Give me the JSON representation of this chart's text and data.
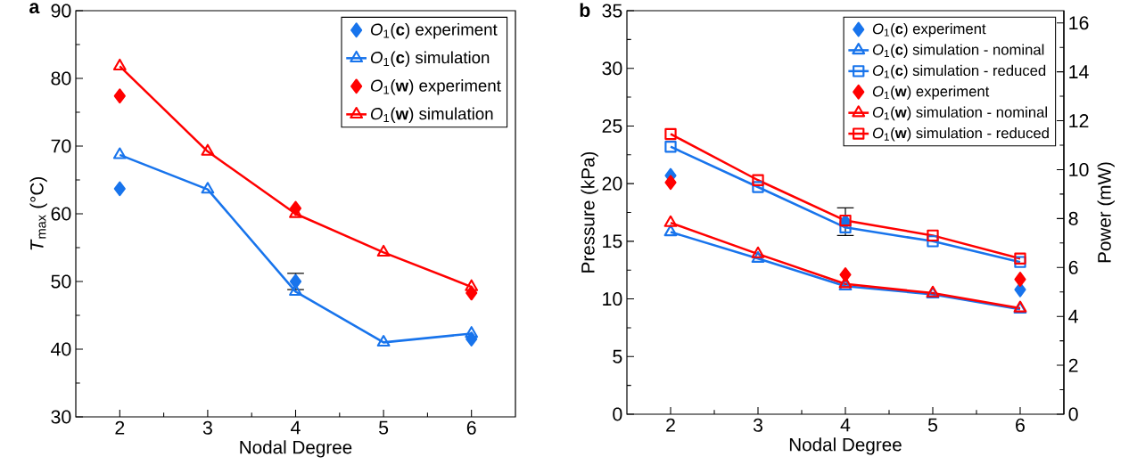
{
  "chart_data": [
    {
      "type": "line",
      "title": "a",
      "xlabel": "Nodal Degree",
      "ylabel": "*T*$_{max}$ (°C)",
      "x": [
        2,
        3,
        4,
        5,
        6
      ],
      "xlim": [
        1.5,
        6.5
      ],
      "xticks": [
        2,
        3,
        4,
        5,
        6
      ],
      "ylim": [
        30,
        90
      ],
      "yticks": [
        30,
        40,
        50,
        60,
        70,
        80,
        90
      ],
      "legend": "top right",
      "series": [
        {
          "name": "*O*$_{1}$(**c**) experiment",
          "type": "scatter",
          "marker": "diamond",
          "color": "#1874ec",
          "values": [
            63.7,
            null,
            50.0,
            null,
            41.5
          ],
          "errors": [
            null,
            null,
            1.2,
            null,
            null
          ]
        },
        {
          "name": "*O*$_{1}$(**c**) simulation",
          "marker": "triangle",
          "color": "#1874ec",
          "values": [
            68.7,
            63.6,
            48.5,
            41.0,
            42.3
          ]
        },
        {
          "name": "*O*$_{1}$(**w**) experiment",
          "type": "scatter",
          "marker": "diamond",
          "color": "#ff0000",
          "values": [
            77.4,
            null,
            60.8,
            null,
            48.3
          ]
        },
        {
          "name": "*O*$_{1}$(**w**) simulation",
          "marker": "triangle",
          "color": "#ff0000",
          "values": [
            81.8,
            69.2,
            60.0,
            54.3,
            49.2
          ]
        }
      ]
    },
    {
      "type": "line",
      "title": "b",
      "xlabel": "Nodal Degree",
      "ylabel": "Pressure (kPa)",
      "y2label": "Power (mW)",
      "x": [
        2,
        3,
        4,
        5,
        6
      ],
      "xlim": [
        1.5,
        6.5
      ],
      "xticks": [
        2,
        3,
        4,
        5,
        6
      ],
      "ylim": [
        0,
        35
      ],
      "yticks": [
        0,
        5,
        10,
        15,
        20,
        25,
        30,
        35
      ],
      "y2lim": [
        0,
        16.5
      ],
      "y2ticks": [
        0,
        2,
        4,
        6,
        8,
        10,
        12,
        14,
        16
      ],
      "legend": "top right",
      "series": [
        {
          "name": "*O*$_{1}$(**c**) experiment",
          "type": "scatter",
          "marker": "diamond",
          "color": "#1874ec",
          "values": [
            20.7,
            null,
            16.7,
            null,
            10.8
          ],
          "errors": [
            null,
            null,
            1.2,
            null,
            null
          ]
        },
        {
          "name": "*O*$_{1}$(**c**) simulation - nominal",
          "marker": "triangle",
          "color": "#1874ec",
          "values": [
            15.8,
            13.5,
            11.1,
            10.4,
            9.1
          ]
        },
        {
          "name": "*O*$_{1}$(**c**) simulation - reduced",
          "marker": "square",
          "color": "#1874ec",
          "values": [
            23.2,
            19.7,
            16.2,
            15.0,
            13.2
          ]
        },
        {
          "name": "*O*$_{1}$(**w**) experiment",
          "type": "scatter",
          "marker": "diamond",
          "color": "#ff0000",
          "values": [
            20.1,
            null,
            12.1,
            null,
            11.7
          ]
        },
        {
          "name": "*O*$_{1}$(**w**) simulation - nominal",
          "marker": "triangle",
          "color": "#ff0000",
          "values": [
            16.6,
            13.9,
            11.3,
            10.5,
            9.2
          ]
        },
        {
          "name": "*O*$_{1}$(**w**) simulation - reduced",
          "marker": "square",
          "color": "#ff0000",
          "values": [
            24.3,
            20.3,
            16.8,
            15.5,
            13.5
          ]
        }
      ]
    }
  ]
}
